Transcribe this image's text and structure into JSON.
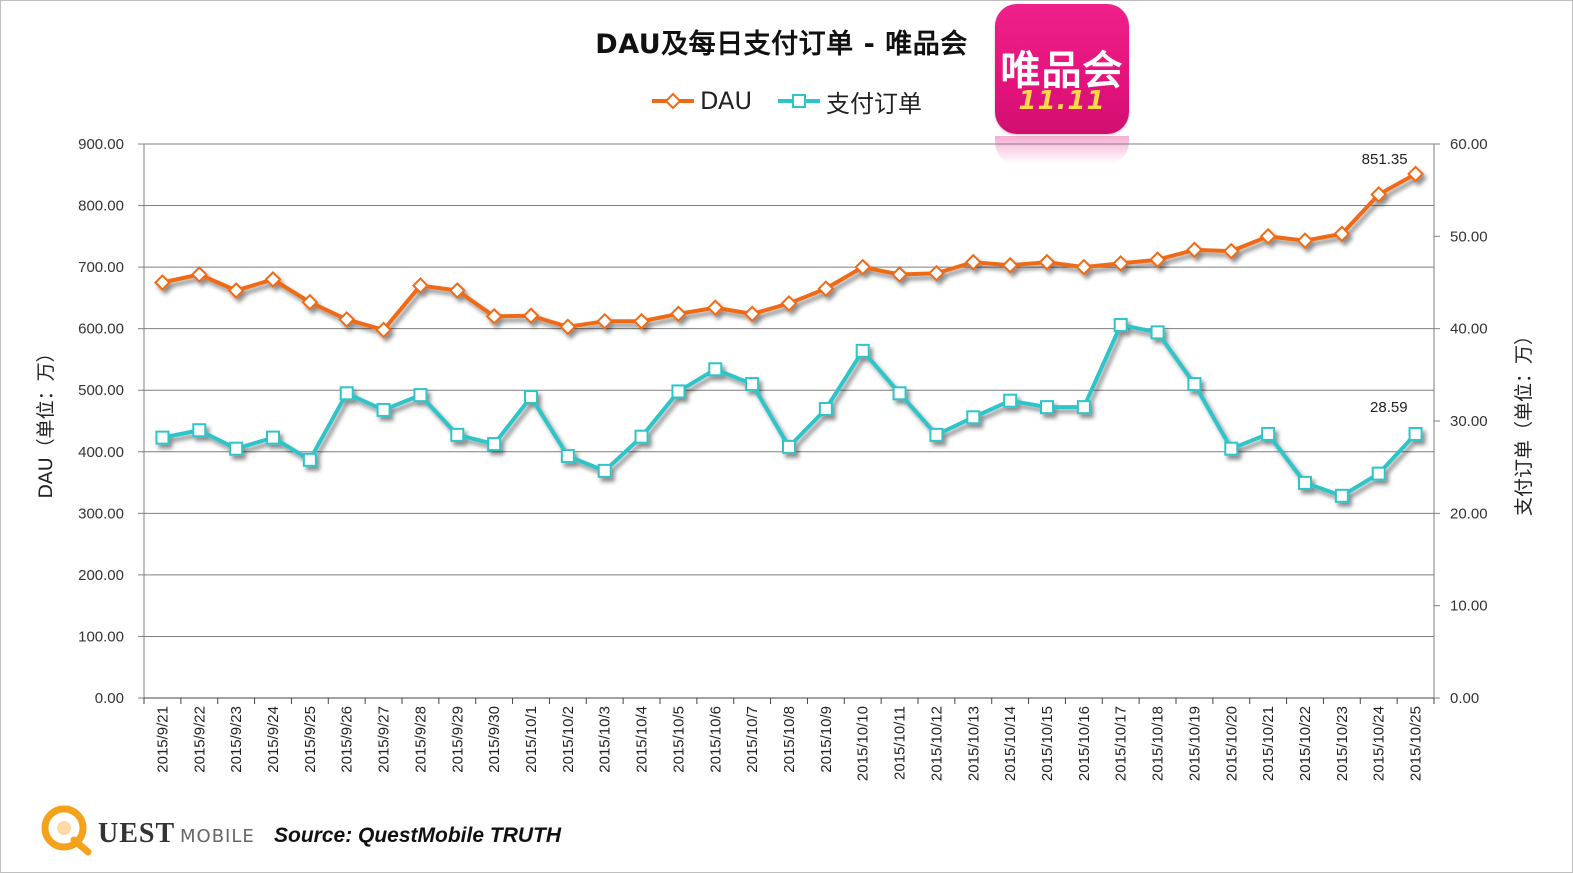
{
  "page": {
    "title": "DAU及每日支付订单 - 唯品会",
    "app_icon": {
      "name": "唯品会",
      "subtitle": "11.11"
    },
    "footer": {
      "logo_q": "Q",
      "brand": "UEST",
      "brand_suffix": "MOBILE",
      "source": "Source: QuestMobile TRUTH"
    }
  },
  "colors": {
    "dau": "#ee6a16",
    "orders": "#2fc4c8",
    "grid": "#7f7f7f",
    "axis_text": "#333333"
  },
  "chart_data": {
    "type": "line",
    "title": "DAU及每日支付订单 - 唯品会",
    "categories": [
      "2015/9/21",
      "2015/9/22",
      "2015/9/23",
      "2015/9/24",
      "2015/9/25",
      "2015/9/26",
      "2015/9/27",
      "2015/9/28",
      "2015/9/29",
      "2015/9/30",
      "2015/10/1",
      "2015/10/2",
      "2015/10/3",
      "2015/10/4",
      "2015/10/5",
      "2015/10/6",
      "2015/10/7",
      "2015/10/8",
      "2015/10/9",
      "2015/10/10",
      "2015/10/11",
      "2015/10/12",
      "2015/10/13",
      "2015/10/14",
      "2015/10/15",
      "2015/10/16",
      "2015/10/17",
      "2015/10/18",
      "2015/10/19",
      "2015/10/20",
      "2015/10/21",
      "2015/10/22",
      "2015/10/23",
      "2015/10/24",
      "2015/10/25"
    ],
    "y_left": {
      "label": "DAU（单位：万）",
      "min": 0,
      "max": 900,
      "ticks": [
        "0.00",
        "100.00",
        "200.00",
        "300.00",
        "400.00",
        "500.00",
        "600.00",
        "700.00",
        "800.00",
        "900.00"
      ]
    },
    "y_right": {
      "label": "支付订单（单位：万）",
      "min": 0,
      "max": 60,
      "ticks": [
        "0.00",
        "10.00",
        "20.00",
        "30.00",
        "40.00",
        "50.00",
        "60.00"
      ]
    },
    "grid": true,
    "legend": "top-center",
    "series": [
      {
        "name": "DAU",
        "axis": "left",
        "marker": "diamond",
        "values": [
          675,
          688,
          662,
          680,
          643,
          615,
          598,
          670,
          662,
          620,
          621,
          603,
          612,
          612,
          624,
          634,
          624,
          641,
          665,
          700,
          688,
          690,
          708,
          703,
          708,
          700,
          706,
          712,
          728,
          726,
          750,
          743,
          754,
          818,
          851.35
        ],
        "end_label": "851.35"
      },
      {
        "name": "支付订单",
        "axis": "right",
        "marker": "square",
        "values": [
          28.2,
          29,
          27,
          28.2,
          25.8,
          33,
          31.2,
          32.8,
          28.5,
          27.5,
          32.6,
          26.2,
          24.6,
          28.3,
          33.2,
          35.6,
          34,
          27.2,
          31.3,
          37.6,
          33,
          28.5,
          30.4,
          32.2,
          31.5,
          31.5,
          40.4,
          39.6,
          34,
          27,
          28.6,
          23.3,
          21.9,
          24.3,
          28.59
        ],
        "end_label": "28.59"
      }
    ]
  }
}
